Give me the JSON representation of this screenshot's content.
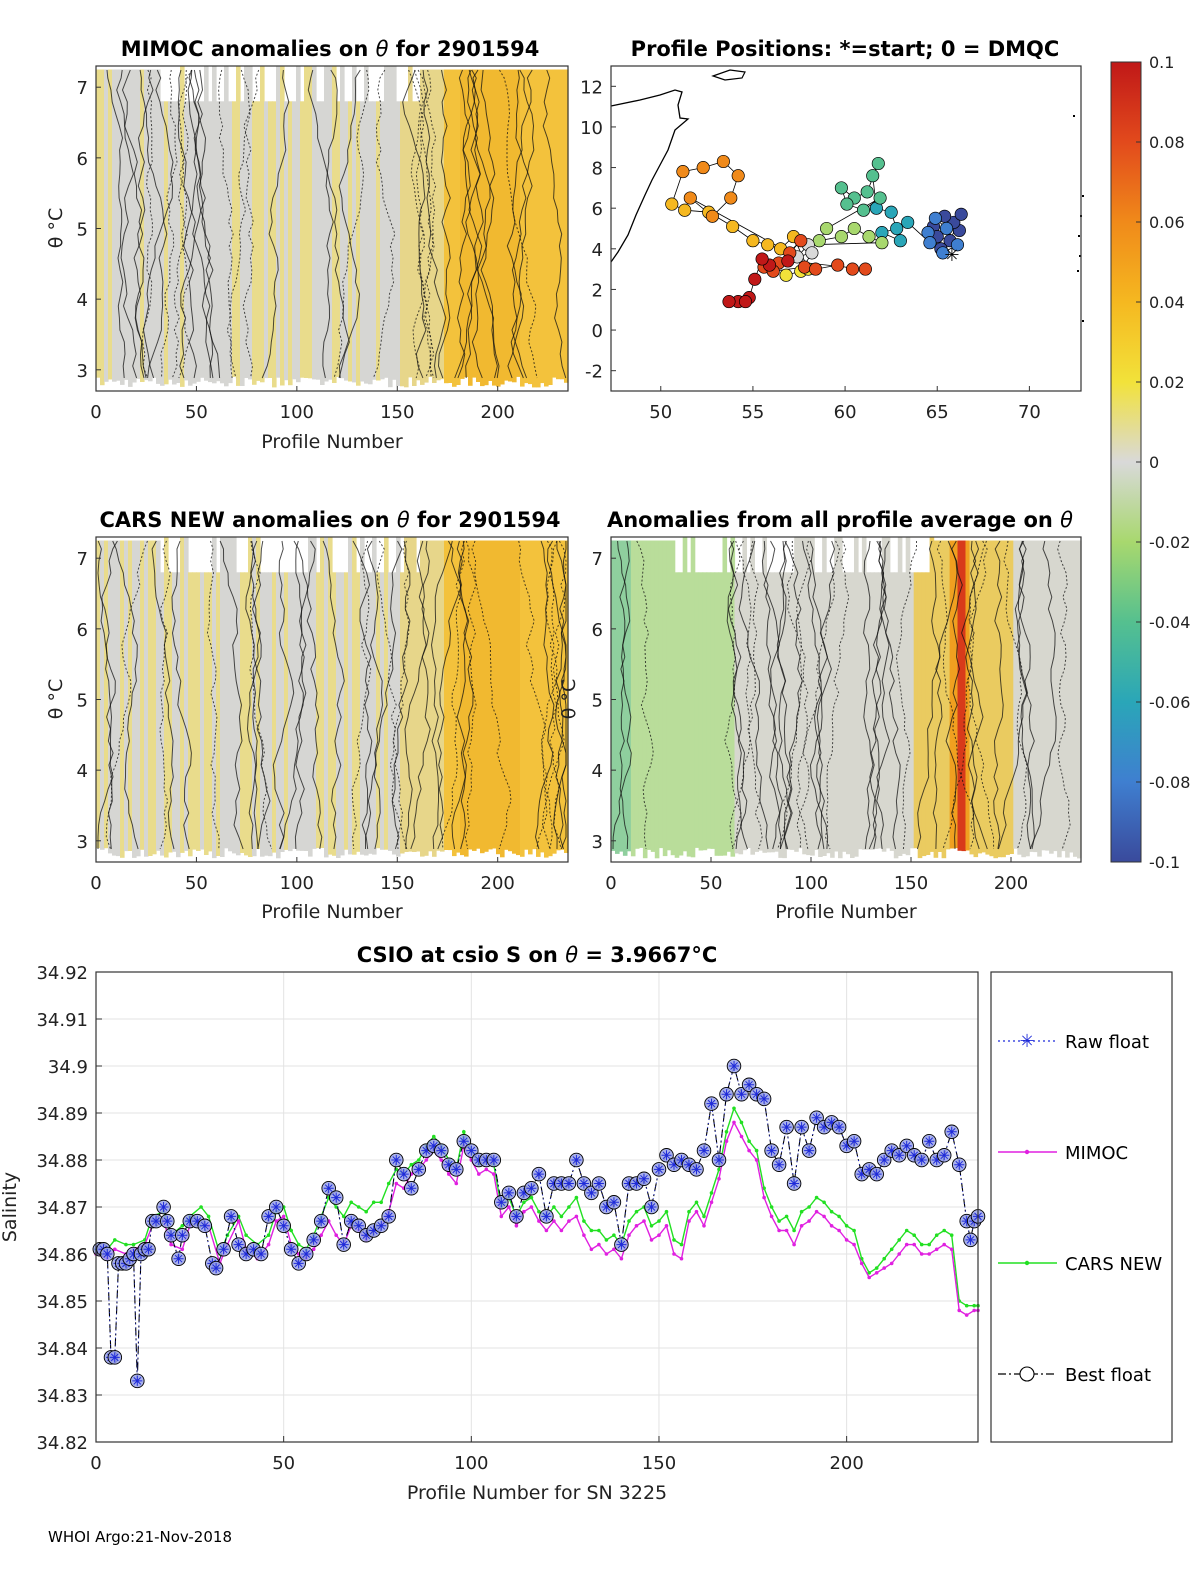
{
  "footer": "WHOI Argo:21-Nov-2018",
  "panels": {
    "mimoc": {
      "title_prefix": "MIMOC anomalies on ",
      "title_symbol": "θ",
      "title_suffix": "  for 2901594",
      "xlabel": "Profile Number",
      "ylabel": "θ °C",
      "xticks": [
        "0",
        "50",
        "100",
        "150",
        "200"
      ],
      "yticks": [
        "3",
        "4",
        "5",
        "6",
        "7"
      ]
    },
    "positions": {
      "title": "Profile Positions: *=start; 0 = DMQC",
      "xticks": [
        "50",
        "55",
        "60",
        "65",
        "70"
      ],
      "yticks": [
        "-2",
        "0",
        "2",
        "4",
        "6",
        "8",
        "10",
        "12"
      ]
    },
    "cars": {
      "title_prefix": "CARS NEW anomalies on ",
      "title_symbol": "θ",
      "title_suffix": " for 2901594",
      "xlabel": "Profile Number",
      "ylabel": "θ °C",
      "xticks": [
        "0",
        "50",
        "100",
        "150",
        "200"
      ],
      "yticks": [
        "3",
        "4",
        "5",
        "6",
        "7"
      ]
    },
    "allavg": {
      "title_prefix": "Anomalies from all profile average on ",
      "title_symbol": "θ",
      "xlabel": "Profile Number",
      "ylabel": "θ °C",
      "xticks": [
        "0",
        "50",
        "100",
        "150",
        "200"
      ],
      "yticks": [
        "3",
        "4",
        "5",
        "6",
        "7"
      ]
    }
  },
  "colorbar": {
    "ticks": [
      "0.1",
      "0.08",
      "0.06",
      "0.04",
      "0.02",
      "0",
      "-0.02",
      "-0.04",
      "-0.06",
      "-0.08",
      "-0.1"
    ],
    "colors": [
      "#3a4a9c",
      "#3f7fd0",
      "#2aa6b8",
      "#55c08f",
      "#a8d86e",
      "#d9d9d9",
      "#f2e23a",
      "#f5b820",
      "#f08a1a",
      "#e24a1c",
      "#c01818"
    ]
  },
  "chart_data": {
    "type": "line",
    "title_prefix": "CSIO at csio S on ",
    "title_symbol": "θ",
    "title_value": " = 3.9667",
    "title_unit": "°C",
    "xlabel": "Profile Number for SN 3225",
    "ylabel": "Salinity",
    "xlim": [
      0,
      235
    ],
    "ylim": [
      34.82,
      34.92
    ],
    "xticks": [
      "0",
      "50",
      "100",
      "150",
      "200"
    ],
    "yticks": [
      "34.82",
      "34.83",
      "34.84",
      "34.85",
      "34.86",
      "34.87",
      "34.88",
      "34.89",
      "34.9",
      "34.91",
      "34.92"
    ],
    "grid": true,
    "legend": [
      "Raw float",
      "MIMOC",
      "CARS NEW",
      "Best float"
    ],
    "legend_position": "outside-right",
    "series_colors": {
      "raw": "#1f2bd9",
      "mimoc": "#e020e0",
      "cars": "#22e022",
      "best": "#000000"
    },
    "best_float": [
      [
        1,
        34.861
      ],
      [
        2,
        34.861
      ],
      [
        3,
        34.86
      ],
      [
        4,
        34.838
      ],
      [
        5,
        34.838
      ],
      [
        6,
        34.858
      ],
      [
        7,
        34.858
      ],
      [
        8,
        34.858
      ],
      [
        9,
        34.859
      ],
      [
        10,
        34.86
      ],
      [
        11,
        34.833
      ],
      [
        12,
        34.86
      ],
      [
        13,
        34.861
      ],
      [
        14,
        34.861
      ],
      [
        15,
        34.867
      ],
      [
        16,
        34.867
      ],
      [
        18,
        34.87
      ],
      [
        19,
        34.867
      ],
      [
        20,
        34.864
      ],
      [
        22,
        34.859
      ],
      [
        23,
        34.864
      ],
      [
        25,
        34.867
      ],
      [
        27,
        34.867
      ],
      [
        29,
        34.866
      ],
      [
        31,
        34.858
      ],
      [
        32,
        34.857
      ],
      [
        34,
        34.861
      ],
      [
        36,
        34.868
      ],
      [
        38,
        34.862
      ],
      [
        40,
        34.86
      ],
      [
        42,
        34.861
      ],
      [
        44,
        34.86
      ],
      [
        46,
        34.868
      ],
      [
        48,
        34.87
      ],
      [
        50,
        34.866
      ],
      [
        52,
        34.861
      ],
      [
        54,
        34.858
      ],
      [
        56,
        34.86
      ],
      [
        58,
        34.863
      ],
      [
        60,
        34.867
      ],
      [
        62,
        34.874
      ],
      [
        64,
        34.872
      ],
      [
        66,
        34.862
      ],
      [
        68,
        34.867
      ],
      [
        70,
        34.866
      ],
      [
        72,
        34.864
      ],
      [
        74,
        34.865
      ],
      [
        76,
        34.866
      ],
      [
        78,
        34.868
      ],
      [
        80,
        34.88
      ],
      [
        82,
        34.877
      ],
      [
        84,
        34.874
      ],
      [
        86,
        34.878
      ],
      [
        88,
        34.882
      ],
      [
        90,
        34.883
      ],
      [
        92,
        34.882
      ],
      [
        94,
        34.879
      ],
      [
        96,
        34.878
      ],
      [
        98,
        34.884
      ],
      [
        100,
        34.882
      ],
      [
        102,
        34.88
      ],
      [
        104,
        34.88
      ],
      [
        106,
        34.88
      ],
      [
        108,
        34.871
      ],
      [
        110,
        34.873
      ],
      [
        112,
        34.868
      ],
      [
        114,
        34.873
      ],
      [
        116,
        34.874
      ],
      [
        118,
        34.877
      ],
      [
        120,
        34.868
      ],
      [
        122,
        34.875
      ],
      [
        124,
        34.875
      ],
      [
        126,
        34.875
      ],
      [
        128,
        34.88
      ],
      [
        130,
        34.875
      ],
      [
        132,
        34.873
      ],
      [
        134,
        34.875
      ],
      [
        136,
        34.87
      ],
      [
        138,
        34.871
      ],
      [
        140,
        34.862
      ],
      [
        142,
        34.875
      ],
      [
        144,
        34.875
      ],
      [
        146,
        34.876
      ],
      [
        148,
        34.87
      ],
      [
        150,
        34.878
      ],
      [
        152,
        34.881
      ],
      [
        154,
        34.879
      ],
      [
        156,
        34.88
      ],
      [
        158,
        34.879
      ],
      [
        160,
        34.878
      ],
      [
        162,
        34.882
      ],
      [
        164,
        34.892
      ],
      [
        166,
        34.88
      ],
      [
        168,
        34.894
      ],
      [
        170,
        34.9
      ],
      [
        172,
        34.894
      ],
      [
        174,
        34.896
      ],
      [
        176,
        34.894
      ],
      [
        178,
        34.893
      ],
      [
        180,
        34.882
      ],
      [
        182,
        34.879
      ],
      [
        184,
        34.887
      ],
      [
        186,
        34.875
      ],
      [
        188,
        34.887
      ],
      [
        190,
        34.882
      ],
      [
        192,
        34.889
      ],
      [
        194,
        34.887
      ],
      [
        196,
        34.888
      ],
      [
        198,
        34.887
      ],
      [
        200,
        34.883
      ],
      [
        202,
        34.884
      ],
      [
        204,
        34.877
      ],
      [
        206,
        34.878
      ],
      [
        208,
        34.877
      ],
      [
        210,
        34.88
      ],
      [
        212,
        34.882
      ],
      [
        214,
        34.881
      ],
      [
        216,
        34.883
      ],
      [
        218,
        34.881
      ],
      [
        220,
        34.88
      ],
      [
        222,
        34.884
      ],
      [
        224,
        34.88
      ],
      [
        226,
        34.881
      ],
      [
        228,
        34.886
      ],
      [
        230,
        34.879
      ],
      [
        232,
        34.867
      ],
      [
        233,
        34.863
      ],
      [
        234,
        34.867
      ],
      [
        235,
        34.868
      ]
    ],
    "mimoc": [
      [
        0,
        34.86
      ],
      [
        3,
        34.859
      ],
      [
        5,
        34.861
      ],
      [
        8,
        34.86
      ],
      [
        10,
        34.861
      ],
      [
        13,
        34.862
      ],
      [
        15,
        34.866
      ],
      [
        18,
        34.867
      ],
      [
        20,
        34.862
      ],
      [
        23,
        34.861
      ],
      [
        25,
        34.866
      ],
      [
        28,
        34.867
      ],
      [
        30,
        34.866
      ],
      [
        33,
        34.858
      ],
      [
        35,
        34.862
      ],
      [
        38,
        34.867
      ],
      [
        40,
        34.861
      ],
      [
        43,
        34.859
      ],
      [
        46,
        34.862
      ],
      [
        48,
        34.867
      ],
      [
        50,
        34.868
      ],
      [
        52,
        34.862
      ],
      [
        54,
        34.86
      ],
      [
        56,
        34.859
      ],
      [
        58,
        34.861
      ],
      [
        60,
        34.864
      ],
      [
        62,
        34.867
      ],
      [
        64,
        34.864
      ],
      [
        66,
        34.862
      ],
      [
        68,
        34.866
      ],
      [
        70,
        34.865
      ],
      [
        72,
        34.863
      ],
      [
        74,
        34.865
      ],
      [
        76,
        34.866
      ],
      [
        78,
        34.869
      ],
      [
        80,
        34.875
      ],
      [
        82,
        34.874
      ],
      [
        84,
        34.877
      ],
      [
        86,
        34.878
      ],
      [
        88,
        34.88
      ],
      [
        90,
        34.882
      ],
      [
        92,
        34.88
      ],
      [
        94,
        34.877
      ],
      [
        96,
        34.875
      ],
      [
        98,
        34.883
      ],
      [
        100,
        34.88
      ],
      [
        102,
        34.877
      ],
      [
        104,
        34.878
      ],
      [
        106,
        34.877
      ],
      [
        108,
        34.868
      ],
      [
        110,
        34.87
      ],
      [
        112,
        34.866
      ],
      [
        114,
        34.869
      ],
      [
        116,
        34.87
      ],
      [
        118,
        34.867
      ],
      [
        120,
        34.865
      ],
      [
        122,
        34.867
      ],
      [
        124,
        34.865
      ],
      [
        126,
        34.867
      ],
      [
        128,
        34.868
      ],
      [
        130,
        34.864
      ],
      [
        132,
        34.861
      ],
      [
        134,
        34.862
      ],
      [
        136,
        34.86
      ],
      [
        138,
        34.861
      ],
      [
        140,
        34.859
      ],
      [
        142,
        34.864
      ],
      [
        144,
        34.866
      ],
      [
        146,
        34.867
      ],
      [
        148,
        34.863
      ],
      [
        150,
        34.864
      ],
      [
        152,
        34.866
      ],
      [
        154,
        34.86
      ],
      [
        156,
        34.859
      ],
      [
        158,
        34.867
      ],
      [
        160,
        34.869
      ],
      [
        162,
        34.866
      ],
      [
        164,
        34.871
      ],
      [
        166,
        34.876
      ],
      [
        168,
        34.884
      ],
      [
        170,
        34.888
      ],
      [
        172,
        34.885
      ],
      [
        174,
        34.882
      ],
      [
        176,
        34.88
      ],
      [
        178,
        34.872
      ],
      [
        180,
        34.868
      ],
      [
        182,
        34.865
      ],
      [
        184,
        34.865
      ],
      [
        186,
        34.862
      ],
      [
        188,
        34.866
      ],
      [
        190,
        34.867
      ],
      [
        192,
        34.869
      ],
      [
        194,
        34.868
      ],
      [
        196,
        34.866
      ],
      [
        198,
        34.865
      ],
      [
        200,
        34.863
      ],
      [
        202,
        34.862
      ],
      [
        204,
        34.858
      ],
      [
        206,
        34.855
      ],
      [
        208,
        34.856
      ],
      [
        210,
        34.857
      ],
      [
        212,
        34.858
      ],
      [
        214,
        34.86
      ],
      [
        216,
        34.862
      ],
      [
        218,
        34.862
      ],
      [
        220,
        34.86
      ],
      [
        222,
        34.86
      ],
      [
        224,
        34.861
      ],
      [
        226,
        34.862
      ],
      [
        228,
        34.861
      ],
      [
        230,
        34.848
      ],
      [
        232,
        34.847
      ],
      [
        234,
        34.848
      ],
      [
        235,
        34.848
      ]
    ],
    "cars_new": [
      [
        0,
        34.861
      ],
      [
        3,
        34.861
      ],
      [
        5,
        34.863
      ],
      [
        8,
        34.862
      ],
      [
        10,
        34.862
      ],
      [
        13,
        34.863
      ],
      [
        15,
        34.868
      ],
      [
        18,
        34.869
      ],
      [
        20,
        34.864
      ],
      [
        23,
        34.866
      ],
      [
        25,
        34.868
      ],
      [
        28,
        34.87
      ],
      [
        30,
        34.868
      ],
      [
        33,
        34.86
      ],
      [
        35,
        34.864
      ],
      [
        38,
        34.868
      ],
      [
        40,
        34.864
      ],
      [
        43,
        34.862
      ],
      [
        46,
        34.864
      ],
      [
        48,
        34.869
      ],
      [
        50,
        34.87
      ],
      [
        52,
        34.865
      ],
      [
        54,
        34.862
      ],
      [
        56,
        34.861
      ],
      [
        58,
        34.864
      ],
      [
        60,
        34.868
      ],
      [
        62,
        34.872
      ],
      [
        64,
        34.87
      ],
      [
        66,
        34.868
      ],
      [
        68,
        34.871
      ],
      [
        70,
        34.87
      ],
      [
        72,
        34.869
      ],
      [
        74,
        34.871
      ],
      [
        76,
        34.871
      ],
      [
        78,
        34.875
      ],
      [
        80,
        34.878
      ],
      [
        82,
        34.877
      ],
      [
        84,
        34.879
      ],
      [
        86,
        34.88
      ],
      [
        88,
        34.883
      ],
      [
        90,
        34.885
      ],
      [
        92,
        34.883
      ],
      [
        94,
        34.88
      ],
      [
        96,
        34.878
      ],
      [
        98,
        34.886
      ],
      [
        100,
        34.882
      ],
      [
        102,
        34.879
      ],
      [
        104,
        34.88
      ],
      [
        106,
        34.879
      ],
      [
        108,
        34.87
      ],
      [
        110,
        34.872
      ],
      [
        112,
        34.868
      ],
      [
        114,
        34.871
      ],
      [
        116,
        34.872
      ],
      [
        118,
        34.869
      ],
      [
        120,
        34.868
      ],
      [
        122,
        34.87
      ],
      [
        124,
        34.868
      ],
      [
        126,
        34.87
      ],
      [
        128,
        34.872
      ],
      [
        130,
        34.867
      ],
      [
        132,
        34.865
      ],
      [
        134,
        34.865
      ],
      [
        136,
        34.863
      ],
      [
        138,
        34.864
      ],
      [
        140,
        34.862
      ],
      [
        142,
        34.867
      ],
      [
        144,
        34.869
      ],
      [
        146,
        34.87
      ],
      [
        148,
        34.866
      ],
      [
        150,
        34.867
      ],
      [
        152,
        34.869
      ],
      [
        154,
        34.863
      ],
      [
        156,
        34.862
      ],
      [
        158,
        34.869
      ],
      [
        160,
        34.871
      ],
      [
        162,
        34.868
      ],
      [
        164,
        34.873
      ],
      [
        166,
        34.878
      ],
      [
        168,
        34.886
      ],
      [
        170,
        34.891
      ],
      [
        172,
        34.888
      ],
      [
        174,
        34.884
      ],
      [
        176,
        34.882
      ],
      [
        178,
        34.874
      ],
      [
        180,
        34.87
      ],
      [
        182,
        34.867
      ],
      [
        184,
        34.868
      ],
      [
        186,
        34.865
      ],
      [
        188,
        34.869
      ],
      [
        190,
        34.87
      ],
      [
        192,
        34.872
      ],
      [
        194,
        34.871
      ],
      [
        196,
        34.869
      ],
      [
        198,
        34.868
      ],
      [
        200,
        34.866
      ],
      [
        202,
        34.865
      ],
      [
        204,
        34.859
      ],
      [
        206,
        34.856
      ],
      [
        208,
        34.857
      ],
      [
        210,
        34.859
      ],
      [
        212,
        34.861
      ],
      [
        214,
        34.863
      ],
      [
        216,
        34.865
      ],
      [
        218,
        34.864
      ],
      [
        220,
        34.862
      ],
      [
        222,
        34.862
      ],
      [
        224,
        34.864
      ],
      [
        226,
        34.865
      ],
      [
        228,
        34.864
      ],
      [
        230,
        34.85
      ],
      [
        232,
        34.849
      ],
      [
        234,
        34.849
      ],
      [
        235,
        34.849
      ]
    ]
  }
}
